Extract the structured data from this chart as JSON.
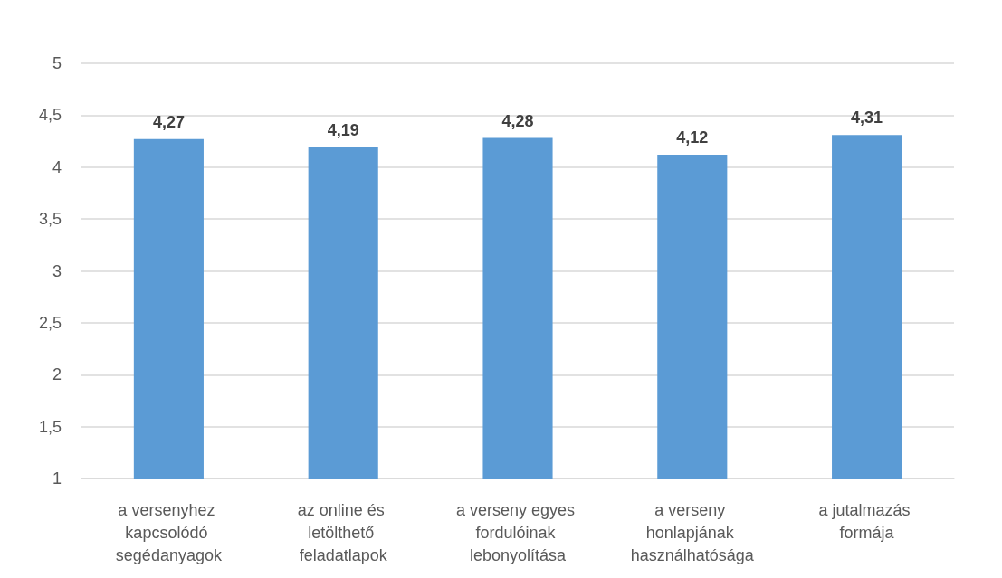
{
  "chart_data": {
    "type": "bar",
    "categories": [
      "a versenyhez kapcsolódó segédanyagok",
      "az online és letölthető feladatlapok",
      "a verseny egyes fordulóinak lebonyolítása",
      "a verseny honlapjának használhatósága",
      "a jutalmazás formája"
    ],
    "values": [
      4.27,
      4.19,
      4.28,
      4.12,
      4.31
    ],
    "color": "#5b9bd5",
    "value_labels": [
      "4,27",
      "4,19",
      "4,28",
      "4,12",
      "4,31"
    ],
    "ylim": [
      1,
      5
    ],
    "yticks": [
      1,
      {
        "value": 1.5,
        "label": "1,5"
      },
      2,
      {
        "value": 2.5,
        "label": "2,5"
      },
      3,
      {
        "value": 3.5,
        "label": "3,5"
      },
      4,
      {
        "value": 4.5,
        "label": "4,5"
      },
      5
    ],
    "grid": "y"
  }
}
